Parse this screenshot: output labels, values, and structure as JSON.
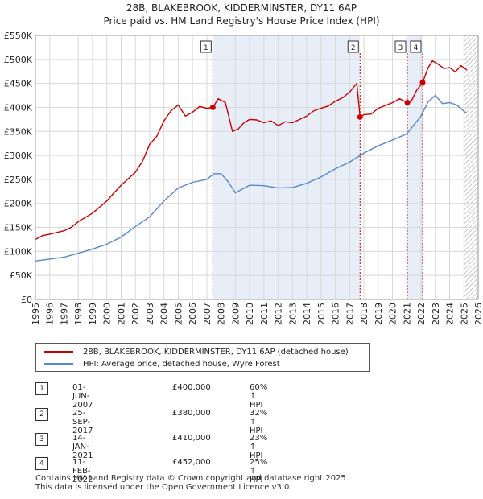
{
  "chart_data": {
    "type": "line",
    "title": "28B, BLAKEBROOK, KIDDERMINSTER, DY11 6AP",
    "subtitle": "Price paid vs. HM Land Registry's House Price Index (HPI)",
    "xlim": [
      1995,
      2026
    ],
    "ylim": [
      0,
      550000
    ],
    "y_ticks": [
      0,
      50000,
      100000,
      150000,
      200000,
      250000,
      300000,
      350000,
      400000,
      450000,
      500000,
      550000
    ],
    "y_tick_labels": [
      "£0",
      "£50K",
      "£100K",
      "£150K",
      "£200K",
      "£250K",
      "£300K",
      "£350K",
      "£400K",
      "£450K",
      "£500K",
      "£550K"
    ],
    "x_ticks": [
      1995,
      1996,
      1997,
      1998,
      1999,
      2000,
      2001,
      2002,
      2003,
      2004,
      2005,
      2006,
      2007,
      2008,
      2009,
      2010,
      2011,
      2012,
      2013,
      2014,
      2015,
      2016,
      2017,
      2018,
      2019,
      2020,
      2021,
      2022,
      2023,
      2024,
      2025,
      2026
    ],
    "x_tick_labels": [
      "1995",
      "1996",
      "1997",
      "1998",
      "1999",
      "2000",
      "2001",
      "2002",
      "2003",
      "2004",
      "2005",
      "2006",
      "2007",
      "2008",
      "2009",
      "2010",
      "2011",
      "2012",
      "2013",
      "2014",
      "2015",
      "2016",
      "2017",
      "2018",
      "2019",
      "2020",
      "2021",
      "2022",
      "2023",
      "2024",
      "2025",
      "2026"
    ],
    "grid": true,
    "legend_position": "below-chart",
    "shaded_periods": [
      [
        2007.42,
        2017.73
      ],
      [
        2021.04,
        2022.11
      ]
    ],
    "hatched_after": 2025.0,
    "series": [
      {
        "name": "28B, BLAKEBROOK, KIDDERMINSTER, DY11 6AP (detached house)",
        "color": "#cc0000",
        "x": [
          1995.0,
          1995.5,
          1996.0,
          1997.0,
          1997.5,
          1998.0,
          1999.0,
          2000.0,
          2000.5,
          2001.0,
          2002.0,
          2002.5,
          2003.0,
          2003.5,
          2004.0,
          2004.5,
          2005.0,
          2005.5,
          2006.0,
          2006.5,
          2007.0,
          2007.42,
          2007.8,
          2008.3,
          2008.8,
          2009.2,
          2009.6,
          2010.0,
          2010.5,
          2011.0,
          2011.5,
          2012.0,
          2012.5,
          2013.0,
          2013.5,
          2014.0,
          2014.5,
          2015.0,
          2015.5,
          2016.0,
          2016.5,
          2017.0,
          2017.5,
          2017.73,
          2018.0,
          2018.5,
          2019.0,
          2019.5,
          2020.0,
          2020.5,
          2021.04,
          2021.3,
          2021.7,
          2022.11,
          2022.5,
          2022.8,
          2023.2,
          2023.6,
          2024.0,
          2024.4,
          2024.8,
          2025.2
        ],
        "y": [
          125000,
          133000,
          136000,
          143000,
          150000,
          162000,
          180000,
          205000,
          222000,
          238000,
          265000,
          288000,
          323000,
          340000,
          372000,
          393000,
          405000,
          382000,
          390000,
          402000,
          398000,
          400000,
          418000,
          410000,
          350000,
          355000,
          368000,
          375000,
          374000,
          368000,
          372000,
          362000,
          370000,
          368000,
          375000,
          382000,
          393000,
          398000,
          403000,
          413000,
          420000,
          432000,
          450000,
          380000,
          385000,
          386000,
          398000,
          404000,
          410000,
          418000,
          410000,
          412000,
          436000,
          452000,
          483000,
          497000,
          490000,
          481000,
          483000,
          474000,
          487000,
          478000
        ]
      },
      {
        "name": "HPI: Average price, detached house, Wyre Forest",
        "color": "#5588cc",
        "x": [
          1995.0,
          1996.0,
          1997.0,
          1998.0,
          1999.0,
          2000.0,
          2001.0,
          2002.0,
          2003.0,
          2004.0,
          2005.0,
          2006.0,
          2007.0,
          2007.5,
          2008.0,
          2008.5,
          2009.0,
          2009.5,
          2010.0,
          2011.0,
          2012.0,
          2013.0,
          2014.0,
          2015.0,
          2016.0,
          2017.0,
          2018.0,
          2019.0,
          2020.0,
          2021.0,
          2022.0,
          2022.5,
          2023.0,
          2023.5,
          2024.0,
          2024.5,
          2025.0,
          2025.2
        ],
        "y": [
          80000,
          84000,
          88000,
          96000,
          105000,
          115000,
          130000,
          152000,
          172000,
          205000,
          232000,
          244000,
          250000,
          262000,
          262000,
          245000,
          222000,
          230000,
          238000,
          237000,
          232000,
          233000,
          242000,
          255000,
          272000,
          286000,
          305000,
          320000,
          332000,
          345000,
          382000,
          412000,
          425000,
          408000,
          410000,
          405000,
          392000,
          388000
        ]
      }
    ],
    "markers": [
      {
        "label": "1",
        "x": 2007.42,
        "y": 400000
      },
      {
        "label": "2",
        "x": 2017.73,
        "y": 380000
      },
      {
        "label": "3",
        "x": 2021.04,
        "y": 410000
      },
      {
        "label": "4",
        "x": 2022.11,
        "y": 452000
      }
    ]
  },
  "legend": {
    "property": "28B, BLAKEBROOK, KIDDERMINSTER, DY11 6AP (detached house)",
    "hpi": "HPI: Average price, detached house, Wyre Forest"
  },
  "transactions": [
    {
      "num": "1",
      "date": "01-JUN-2007",
      "price": "£400,000",
      "hpi": "60% ↑ HPI"
    },
    {
      "num": "2",
      "date": "25-SEP-2017",
      "price": "£380,000",
      "hpi": "32% ↑ HPI"
    },
    {
      "num": "3",
      "date": "14-JAN-2021",
      "price": "£410,000",
      "hpi": "23% ↑ HPI"
    },
    {
      "num": "4",
      "date": "11-FEB-2022",
      "price": "£452,000",
      "hpi": "25% ↑ HPI"
    }
  ],
  "footer": {
    "line1": "Contains HM Land Registry data © Crown copyright and database right 2025.",
    "line2": "This data is licensed under the Open Government Licence v3.0."
  },
  "colors": {
    "property": "#cc0000",
    "hpi": "#5588cc",
    "shade": "#e8eef8",
    "grid": "#d8d8d8"
  }
}
